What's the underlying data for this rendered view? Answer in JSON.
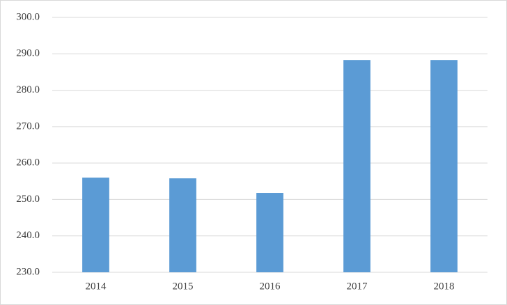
{
  "chart_data": {
    "type": "bar",
    "categories": [
      "2014",
      "2015",
      "2016",
      "2017",
      "2018"
    ],
    "values": [
      256.0,
      255.8,
      251.8,
      288.3,
      288.3
    ],
    "color": "#5b9bd5",
    "ylim": [
      230,
      300
    ],
    "yticks": [
      {
        "value": 230,
        "label": "230.0"
      },
      {
        "value": 240,
        "label": "240.0"
      },
      {
        "value": 250,
        "label": "250.0"
      },
      {
        "value": 260,
        "label": "260.0"
      },
      {
        "value": 270,
        "label": "270.0"
      },
      {
        "value": 280,
        "label": "280.0"
      },
      {
        "value": 290,
        "label": "290.0"
      },
      {
        "value": 300,
        "label": "300.0"
      }
    ],
    "grid": true
  }
}
